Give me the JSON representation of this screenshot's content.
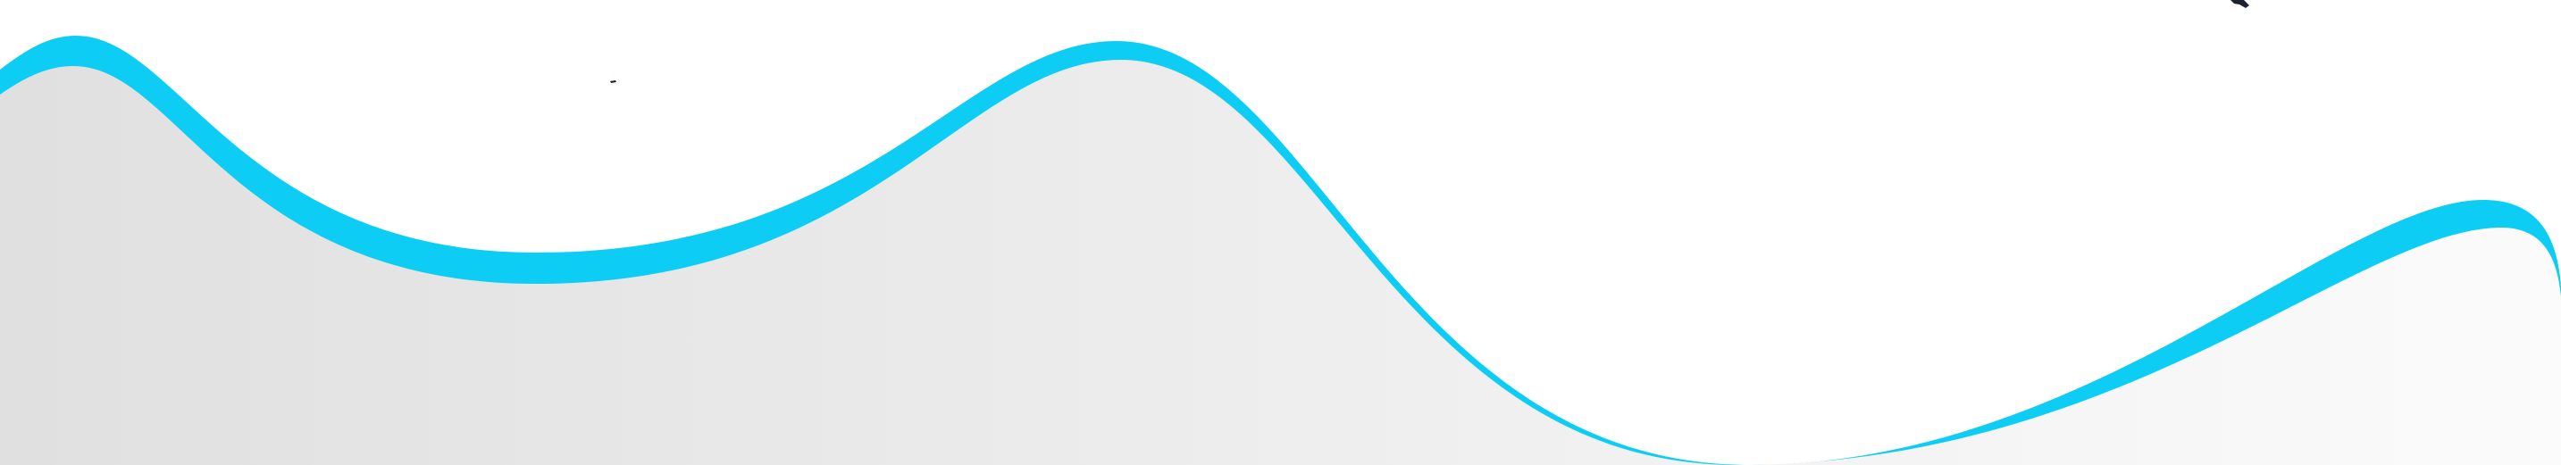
{
  "colors": {
    "background": "#ffffff",
    "accent_wave": "#0dcdf4",
    "fill_gradient_start": "#e0e0e0",
    "fill_gradient_end": "#fbfbfb",
    "speck": "#1c2233"
  }
}
